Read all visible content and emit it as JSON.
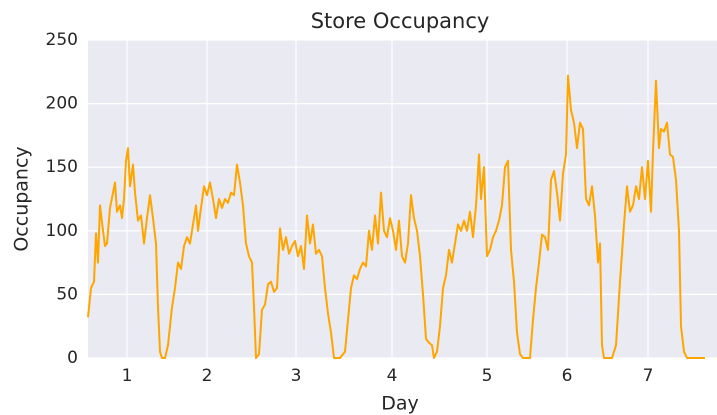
{
  "chart_data": {
    "type": "line",
    "title": "Store Occupancy",
    "xlabel": "Day",
    "ylabel": "Occupancy",
    "x": [
      0,
      3,
      6,
      8,
      10,
      12,
      15,
      17,
      19,
      22,
      25,
      27,
      29,
      32,
      34,
      36,
      38,
      40,
      42,
      45,
      47,
      50,
      53,
      56,
      59,
      62,
      65,
      68,
      70,
      72,
      74,
      77,
      80,
      84,
      87,
      90,
      93,
      96,
      99,
      102,
      105,
      108,
      110,
      113,
      116,
      119,
      122,
      125,
      128,
      131,
      134,
      137,
      140,
      143,
      146,
      149,
      152,
      155,
      158,
      161,
      164,
      166,
      168,
      171,
      174,
      177,
      180,
      183,
      186,
      189,
      192,
      195,
      198,
      201,
      204,
      207,
      210,
      213,
      216,
      219,
      222,
      225,
      228,
      231,
      234,
      237,
      240,
      243,
      246,
      252,
      257,
      260,
      263,
      266,
      269,
      272,
      275,
      278,
      281,
      284,
      287,
      290,
      293,
      296,
      299,
      302,
      305,
      308,
      311,
      314,
      317,
      320,
      323,
      326,
      329,
      332,
      335,
      338,
      341,
      344,
      346,
      349,
      352,
      355,
      358,
      361,
      364,
      367,
      370,
      373,
      376,
      379,
      382,
      385,
      388,
      391,
      393,
      396,
      399,
      402,
      405,
      408,
      411,
      414,
      417,
      420,
      423,
      426,
      429,
      432,
      435,
      442,
      445,
      448,
      451,
      454,
      457,
      460,
      463,
      466,
      469,
      472,
      475,
      478,
      480,
      483,
      486,
      489,
      492,
      495,
      498,
      501,
      504,
      507,
      510,
      512,
      514,
      516,
      524,
      528,
      532,
      536,
      539,
      542,
      545,
      548,
      551,
      554,
      557,
      560,
      563,
      565,
      568,
      571,
      573,
      576,
      579,
      582,
      585,
      588,
      591,
      593,
      596,
      599,
      617
    ],
    "series": [
      {
        "name": "Occupancy",
        "color": "#ffa500",
        "values": [
          32,
          55,
          60,
          98,
          75,
          120,
          100,
          88,
          90,
          118,
          130,
          138,
          115,
          120,
          110,
          125,
          155,
          165,
          135,
          152,
          130,
          108,
          112,
          90,
          110,
          128,
          110,
          90,
          40,
          5,
          0,
          0,
          10,
          40,
          55,
          75,
          70,
          88,
          95,
          90,
          105,
          120,
          100,
          118,
          135,
          128,
          138,
          125,
          110,
          125,
          118,
          125,
          122,
          130,
          128,
          152,
          138,
          120,
          90,
          80,
          75,
          40,
          0,
          3,
          38,
          42,
          58,
          60,
          52,
          55,
          102,
          85,
          95,
          82,
          88,
          92,
          80,
          88,
          70,
          112,
          90,
          105,
          82,
          85,
          80,
          55,
          35,
          20,
          0,
          0,
          5,
          30,
          55,
          65,
          62,
          70,
          75,
          72,
          100,
          85,
          112,
          90,
          130,
          100,
          95,
          110,
          100,
          85,
          108,
          80,
          75,
          90,
          128,
          110,
          100,
          80,
          50,
          15,
          12,
          10,
          0,
          5,
          25,
          55,
          65,
          85,
          75,
          90,
          105,
          100,
          108,
          100,
          115,
          95,
          120,
          160,
          125,
          150,
          80,
          85,
          95,
          100,
          108,
          120,
          150,
          155,
          85,
          60,
          20,
          3,
          0,
          0,
          30,
          55,
          75,
          97,
          95,
          85,
          140,
          147,
          130,
          108,
          145,
          160,
          222,
          195,
          185,
          165,
          185,
          180,
          125,
          120,
          135,
          112,
          75,
          90,
          10,
          0,
          0,
          10,
          60,
          105,
          135,
          115,
          120,
          135,
          125,
          150,
          125,
          155,
          115,
          162,
          218,
          165,
          180,
          178,
          185,
          160,
          158,
          140,
          100,
          25,
          5,
          0,
          0
        ]
      }
    ],
    "xlim": [
      0,
      629
    ],
    "xticks": [
      {
        "value": 39,
        "label": "1"
      },
      {
        "value": 119,
        "label": "2"
      },
      {
        "value": 208,
        "label": "3"
      },
      {
        "value": 304,
        "label": "4"
      },
      {
        "value": 399,
        "label": "5"
      },
      {
        "value": 479,
        "label": "6"
      },
      {
        "value": 560,
        "label": "7"
      }
    ],
    "ylim": [
      0,
      250
    ],
    "yticks": [
      0,
      50,
      100,
      150,
      200,
      250
    ],
    "grid": true
  }
}
